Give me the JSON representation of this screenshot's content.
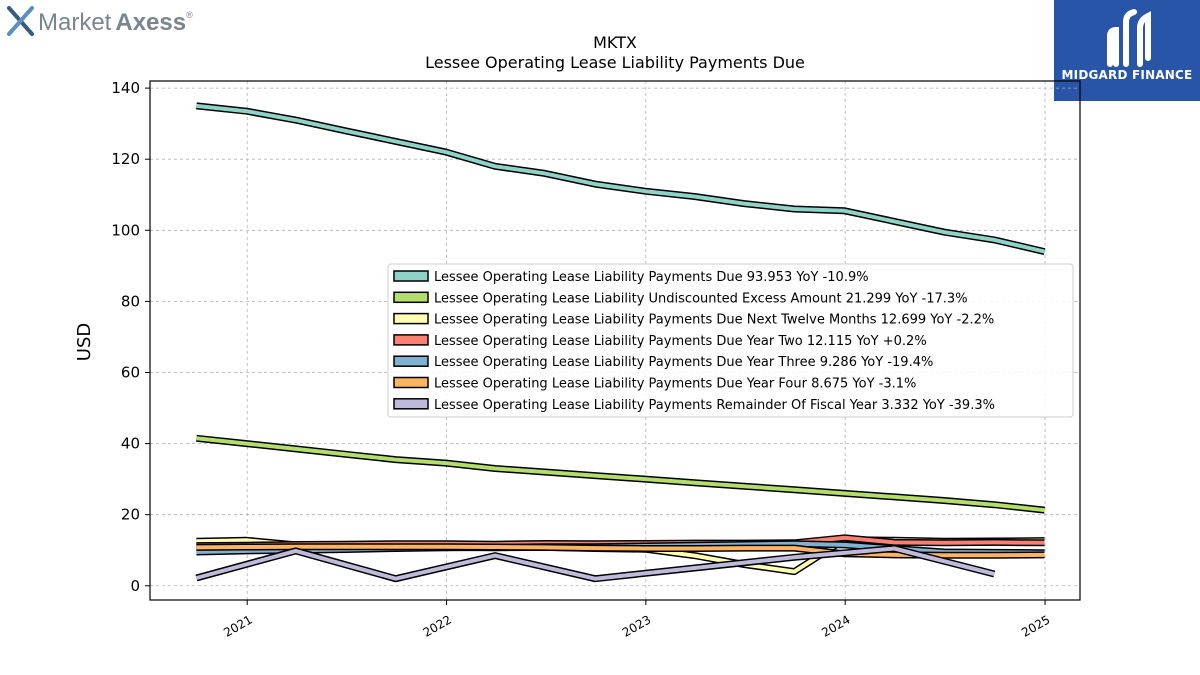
{
  "branding": {
    "left_logo_text_1": "Market",
    "left_logo_text_2": "Axess",
    "left_logo_mark": "®",
    "right_logo_text": "MIDGARD FINANCE",
    "right_logo_bg": "#2855a8"
  },
  "chart_data": {
    "type": "line",
    "title": "MKTX",
    "subtitle": "Lessee Operating Lease Liability Payments Due",
    "xlabel": "",
    "ylabel": "USD",
    "ylim": [
      -4,
      142
    ],
    "yticks": [
      0,
      20,
      40,
      60,
      80,
      100,
      120,
      140
    ],
    "xlim": [
      "2020-07-07",
      "2025-03-06"
    ],
    "xticks": [
      "2021",
      "2022",
      "2023",
      "2024",
      "2025"
    ],
    "grid": true,
    "legend_position": "center-right",
    "series": [
      {
        "name": "Lessee Operating Lease Liability Payments Due",
        "legend": "Lessee Operating Lease Liability Payments Due  93.953 YoY -10.9%",
        "color": "#8dd3c7",
        "x": [
          "2020-09-30",
          "2020-12-31",
          "2021-03-31",
          "2021-06-30",
          "2021-09-30",
          "2021-12-31",
          "2022-03-31",
          "2022-06-30",
          "2022-09-30",
          "2022-12-31",
          "2023-03-31",
          "2023-06-30",
          "2023-09-30",
          "2023-12-31",
          "2024-03-31",
          "2024-06-30",
          "2024-09-30",
          "2024-12-31"
        ],
        "y": [
          135,
          133.5,
          131,
          128,
          125,
          122,
          118,
          116,
          113,
          111,
          109.5,
          107.5,
          106,
          105.5,
          102.5,
          99.5,
          97.3,
          94.0
        ]
      },
      {
        "name": "Lessee Operating Lease Liability Undiscounted Excess Amount",
        "legend": "Lessee Operating Lease Liability Undiscounted Excess Amount  21.299 YoY -17.3%",
        "color": "#b3de69",
        "x": [
          "2020-09-30",
          "2020-12-31",
          "2021-03-31",
          "2021-06-30",
          "2021-09-30",
          "2021-12-31",
          "2022-03-31",
          "2022-06-30",
          "2022-09-30",
          "2022-12-31",
          "2023-03-31",
          "2023-06-30",
          "2023-09-30",
          "2023-12-31",
          "2024-03-31",
          "2024-06-30",
          "2024-09-30",
          "2024-12-31"
        ],
        "y": [
          41.5,
          40,
          38.5,
          37,
          35.5,
          34.5,
          33,
          32,
          31,
          30,
          29,
          28,
          27,
          26,
          25,
          24,
          22.8,
          21.3
        ]
      },
      {
        "name": "Lessee Operating Lease Liability Payments Due Next Twelve Months",
        "legend": "Lessee Operating Lease Liability Payments Due Next Twelve Months  12.699 YoY -2.2%",
        "color": "#ffffb3",
        "x": [
          "2020-09-30",
          "2020-12-31",
          "2021-03-31",
          "2021-06-30",
          "2021-09-30",
          "2021-12-31",
          "2022-03-31",
          "2022-06-30",
          "2022-09-30",
          "2022-12-31",
          "2023-03-31",
          "2023-06-30",
          "2023-09-30",
          "2023-12-31",
          "2024-03-31",
          "2024-06-30",
          "2024-09-30",
          "2024-12-31"
        ],
        "y": [
          12.5,
          12.8,
          11.5,
          11.2,
          11.0,
          10.8,
          10.7,
          10.8,
          10.5,
          10.3,
          8.5,
          6.0,
          4.0,
          13.0,
          12.8,
          12.5,
          12.6,
          12.7
        ]
      },
      {
        "name": "Lessee Operating Lease Liability Payments Due Year Two",
        "legend": "Lessee Operating Lease Liability Payments Due Year Two  12.115 YoY +0.2%",
        "color": "#fb8072",
        "x": [
          "2020-09-30",
          "2020-12-31",
          "2021-03-31",
          "2021-06-30",
          "2021-09-30",
          "2021-12-31",
          "2022-03-31",
          "2022-06-30",
          "2022-09-30",
          "2022-12-31",
          "2023-03-31",
          "2023-06-30",
          "2023-09-30",
          "2023-12-31",
          "2024-03-31",
          "2024-06-30",
          "2024-09-30",
          "2024-12-31"
        ],
        "y": [
          11.3,
          11.4,
          11.6,
          11.7,
          11.8,
          11.8,
          11.7,
          11.9,
          11.8,
          11.9,
          12.0,
          12.0,
          12.1,
          13.5,
          12.2,
          12.1,
          12.2,
          12.1
        ]
      },
      {
        "name": "Lessee Operating Lease Liability Payments Due Year Three",
        "legend": "Lessee Operating Lease Liability Payments Due Year Three  9.286 YoY -19.4%",
        "color": "#80b1d3",
        "x": [
          "2020-09-30",
          "2020-12-31",
          "2021-03-31",
          "2021-06-30",
          "2021-09-30",
          "2021-12-31",
          "2022-03-31",
          "2022-06-30",
          "2022-09-30",
          "2022-12-31",
          "2023-03-31",
          "2023-06-30",
          "2023-09-30",
          "2023-12-31",
          "2024-03-31",
          "2024-06-30",
          "2024-09-30",
          "2024-12-31"
        ],
        "y": [
          9.5,
          9.8,
          10.0,
          10.2,
          10.5,
          10.7,
          10.8,
          11.0,
          11.0,
          11.2,
          11.4,
          11.6,
          11.8,
          11.5,
          10.5,
          9.5,
          9.4,
          9.3
        ]
      },
      {
        "name": "Lessee Operating Lease Liability Payments Due Year Four",
        "legend": "Lessee Operating Lease Liability Payments Due Year Four  8.675 YoY -3.1%",
        "color": "#fdb462",
        "x": [
          "2020-09-30",
          "2020-12-31",
          "2021-03-31",
          "2021-06-30",
          "2021-09-30",
          "2021-12-31",
          "2022-03-31",
          "2022-06-30",
          "2022-09-30",
          "2022-12-31",
          "2023-03-31",
          "2023-06-30",
          "2023-09-30",
          "2023-12-31",
          "2024-03-31",
          "2024-06-30",
          "2024-09-30",
          "2024-12-31"
        ],
        "y": [
          10.8,
          10.9,
          11.0,
          11.0,
          11.0,
          11.0,
          10.9,
          10.8,
          10.6,
          10.5,
          10.5,
          10.6,
          10.6,
          9.0,
          8.7,
          8.6,
          8.6,
          8.7
        ]
      },
      {
        "name": "Lessee Operating Lease Liability Payments Remainder Of Fiscal Year",
        "legend": "Lessee Operating Lease Liability Payments Remainder Of Fiscal Year  3.332 YoY -39.3%",
        "color": "#bebada",
        "x": [
          "2020-09-30",
          "2021-03-31",
          "2021-09-30",
          "2022-03-31",
          "2022-09-30",
          "2023-09-30",
          "2024-03-31",
          "2024-09-30"
        ],
        "y": [
          2.2,
          9.8,
          2.0,
          8.5,
          2.0,
          8.0,
          10.5,
          3.3
        ]
      }
    ]
  }
}
